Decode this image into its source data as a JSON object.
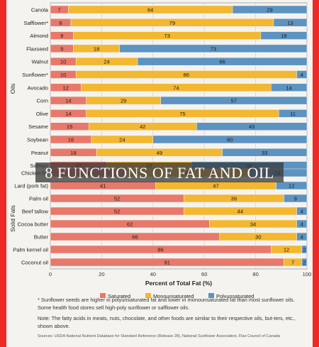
{
  "chart_data": {
    "type": "bar",
    "stacked": true,
    "orientation": "horizontal",
    "groups": [
      {
        "name": "Oils",
        "categories": [
          "Canola",
          "Safflower*",
          "Almond",
          "Flaxseed",
          "Walnut",
          "Sunflower*",
          "Avocado",
          "Corn",
          "Olive",
          "Sesame",
          "Soybean",
          "Peanut",
          "Salmon"
        ]
      },
      {
        "name": "Solid Fats",
        "categories": [
          "Chicken fat",
          "Lard (pork fat)",
          "Palm oil",
          "Beef tallow",
          "Cocoa butter",
          "Butter",
          "Palm kernel oil",
          "Coconut oil"
        ]
      }
    ],
    "categories": [
      "Canola",
      "Safflower*",
      "Almond",
      "Flaxseed",
      "Walnut",
      "Sunflower*",
      "Avocado",
      "Corn",
      "Olive",
      "Sesame",
      "Soybean",
      "Peanut",
      "Salmon",
      "Chicken fat",
      "Lard (pork fat)",
      "Palm oil",
      "Beef tallow",
      "Cocoa butter",
      "Butter",
      "Palm kernel oil",
      "Coconut oil"
    ],
    "series": [
      {
        "name": "Saturated",
        "color": "#e8796a",
        "values": [
          7,
          8,
          9,
          9,
          10,
          10,
          12,
          14,
          14,
          15,
          16,
          18,
          22,
          30,
          41,
          52,
          52,
          62,
          66,
          86,
          91
        ]
      },
      {
        "name": "Monounsaturated",
        "color": "#f3b730",
        "values": [
          64,
          79,
          73,
          18,
          24,
          86,
          74,
          29,
          75,
          42,
          24,
          49,
          33,
          47,
          47,
          39,
          44,
          34,
          30,
          12,
          7
        ]
      },
      {
        "name": "Polyunsaturated",
        "color": "#5d93c0",
        "values": [
          29,
          13,
          18,
          73,
          66,
          4,
          14,
          57,
          11,
          43,
          60,
          33,
          45,
          23,
          12,
          9,
          4,
          4,
          4,
          2,
          2
        ]
      }
    ],
    "xlabel": "Percent of Total Fat (%)",
    "xlim": [
      0,
      100
    ],
    "xticks": [
      0,
      20,
      40,
      60,
      80,
      100
    ],
    "grid": true,
    "legend_position": "bottom"
  },
  "overlay": {
    "banner_text": "8 FUNCTIONS OF FAT AND OIL"
  },
  "notes": {
    "footnote": "* Sunflower seeds are higher in polyunsaturated fat and lower in monounsaturated fat than most sunflower oils. Some health food stores sell high-poly sunflower or safflower oils.",
    "note": "Note: The fatty acids in meats, nuts, chocolate, and other foods are similar to their respective oils, but-ters, etc., shown above.",
    "sources": "Sources: USDA National Nutrient Database for Standard Reference (Release 28), National Sunflower Association, Flax Council of Canada"
  },
  "colors": {
    "frame": "#ee2a24",
    "panel": "#f4f3ef"
  }
}
